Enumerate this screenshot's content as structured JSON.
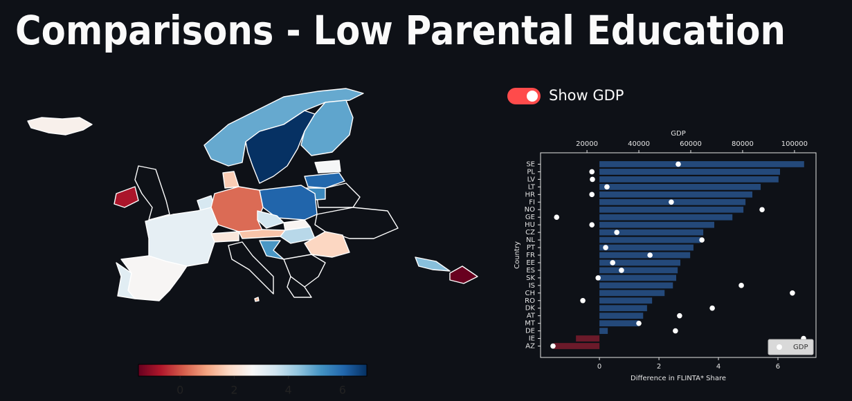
{
  "title": "Comparisons - Low Parental Education",
  "toggle": {
    "label": "Show GDP",
    "on": true
  },
  "chart_data": [
    {
      "type": "choropleth",
      "colormap": "RdBu",
      "clim": [
        -1.54,
        6.9
      ],
      "colorbar_ticks": [
        0,
        2,
        4,
        6
      ]
    },
    {
      "type": "bar",
      "orientation": "horizontal",
      "categories": [
        "SE",
        "PL",
        "LV",
        "LT",
        "HR",
        "FI",
        "NO",
        "GE",
        "HU",
        "CZ",
        "NL",
        "PT",
        "FR",
        "EE",
        "ES",
        "SK",
        "IS",
        "CH",
        "RO",
        "DK",
        "AT",
        "MT",
        "DE",
        "IE",
        "AZ"
      ],
      "series": [
        {
          "color": "#24497a",
          "negative_color": "#6b1a2a",
          "values": [
            6.88,
            6.07,
            6.02,
            5.42,
            5.14,
            4.91,
            4.84,
            4.47,
            3.86,
            3.49,
            3.4,
            3.16,
            3.05,
            2.72,
            2.63,
            2.58,
            2.47,
            2.19,
            1.77,
            1.6,
            1.47,
            1.33,
            0.28,
            -0.79,
            -1.53
          ]
        },
        {
          "name": "GDP",
          "type": "scatter",
          "axis": "x2",
          "color": "#ffffff",
          "values": [
            55200,
            21900,
            22100,
            27700,
            21900,
            52500,
            87500,
            8300,
            21900,
            31500,
            64300,
            27200,
            44300,
            29900,
            33300,
            24300,
            79500,
            99200,
            18400,
            68300,
            55700,
            40000,
            54100,
            103500,
            6900
          ]
        }
      ],
      "xlabel": "Difference in FLINTA* Share",
      "ylabel": "Country",
      "x2label": "GDP",
      "xlim": [
        -1.98,
        7.28
      ],
      "xticks": [
        0,
        2,
        4,
        6
      ],
      "x2lim": [
        2100,
        108300
      ],
      "x2ticks": [
        20000,
        40000,
        60000,
        80000,
        100000
      ],
      "legend": "lower right"
    }
  ]
}
